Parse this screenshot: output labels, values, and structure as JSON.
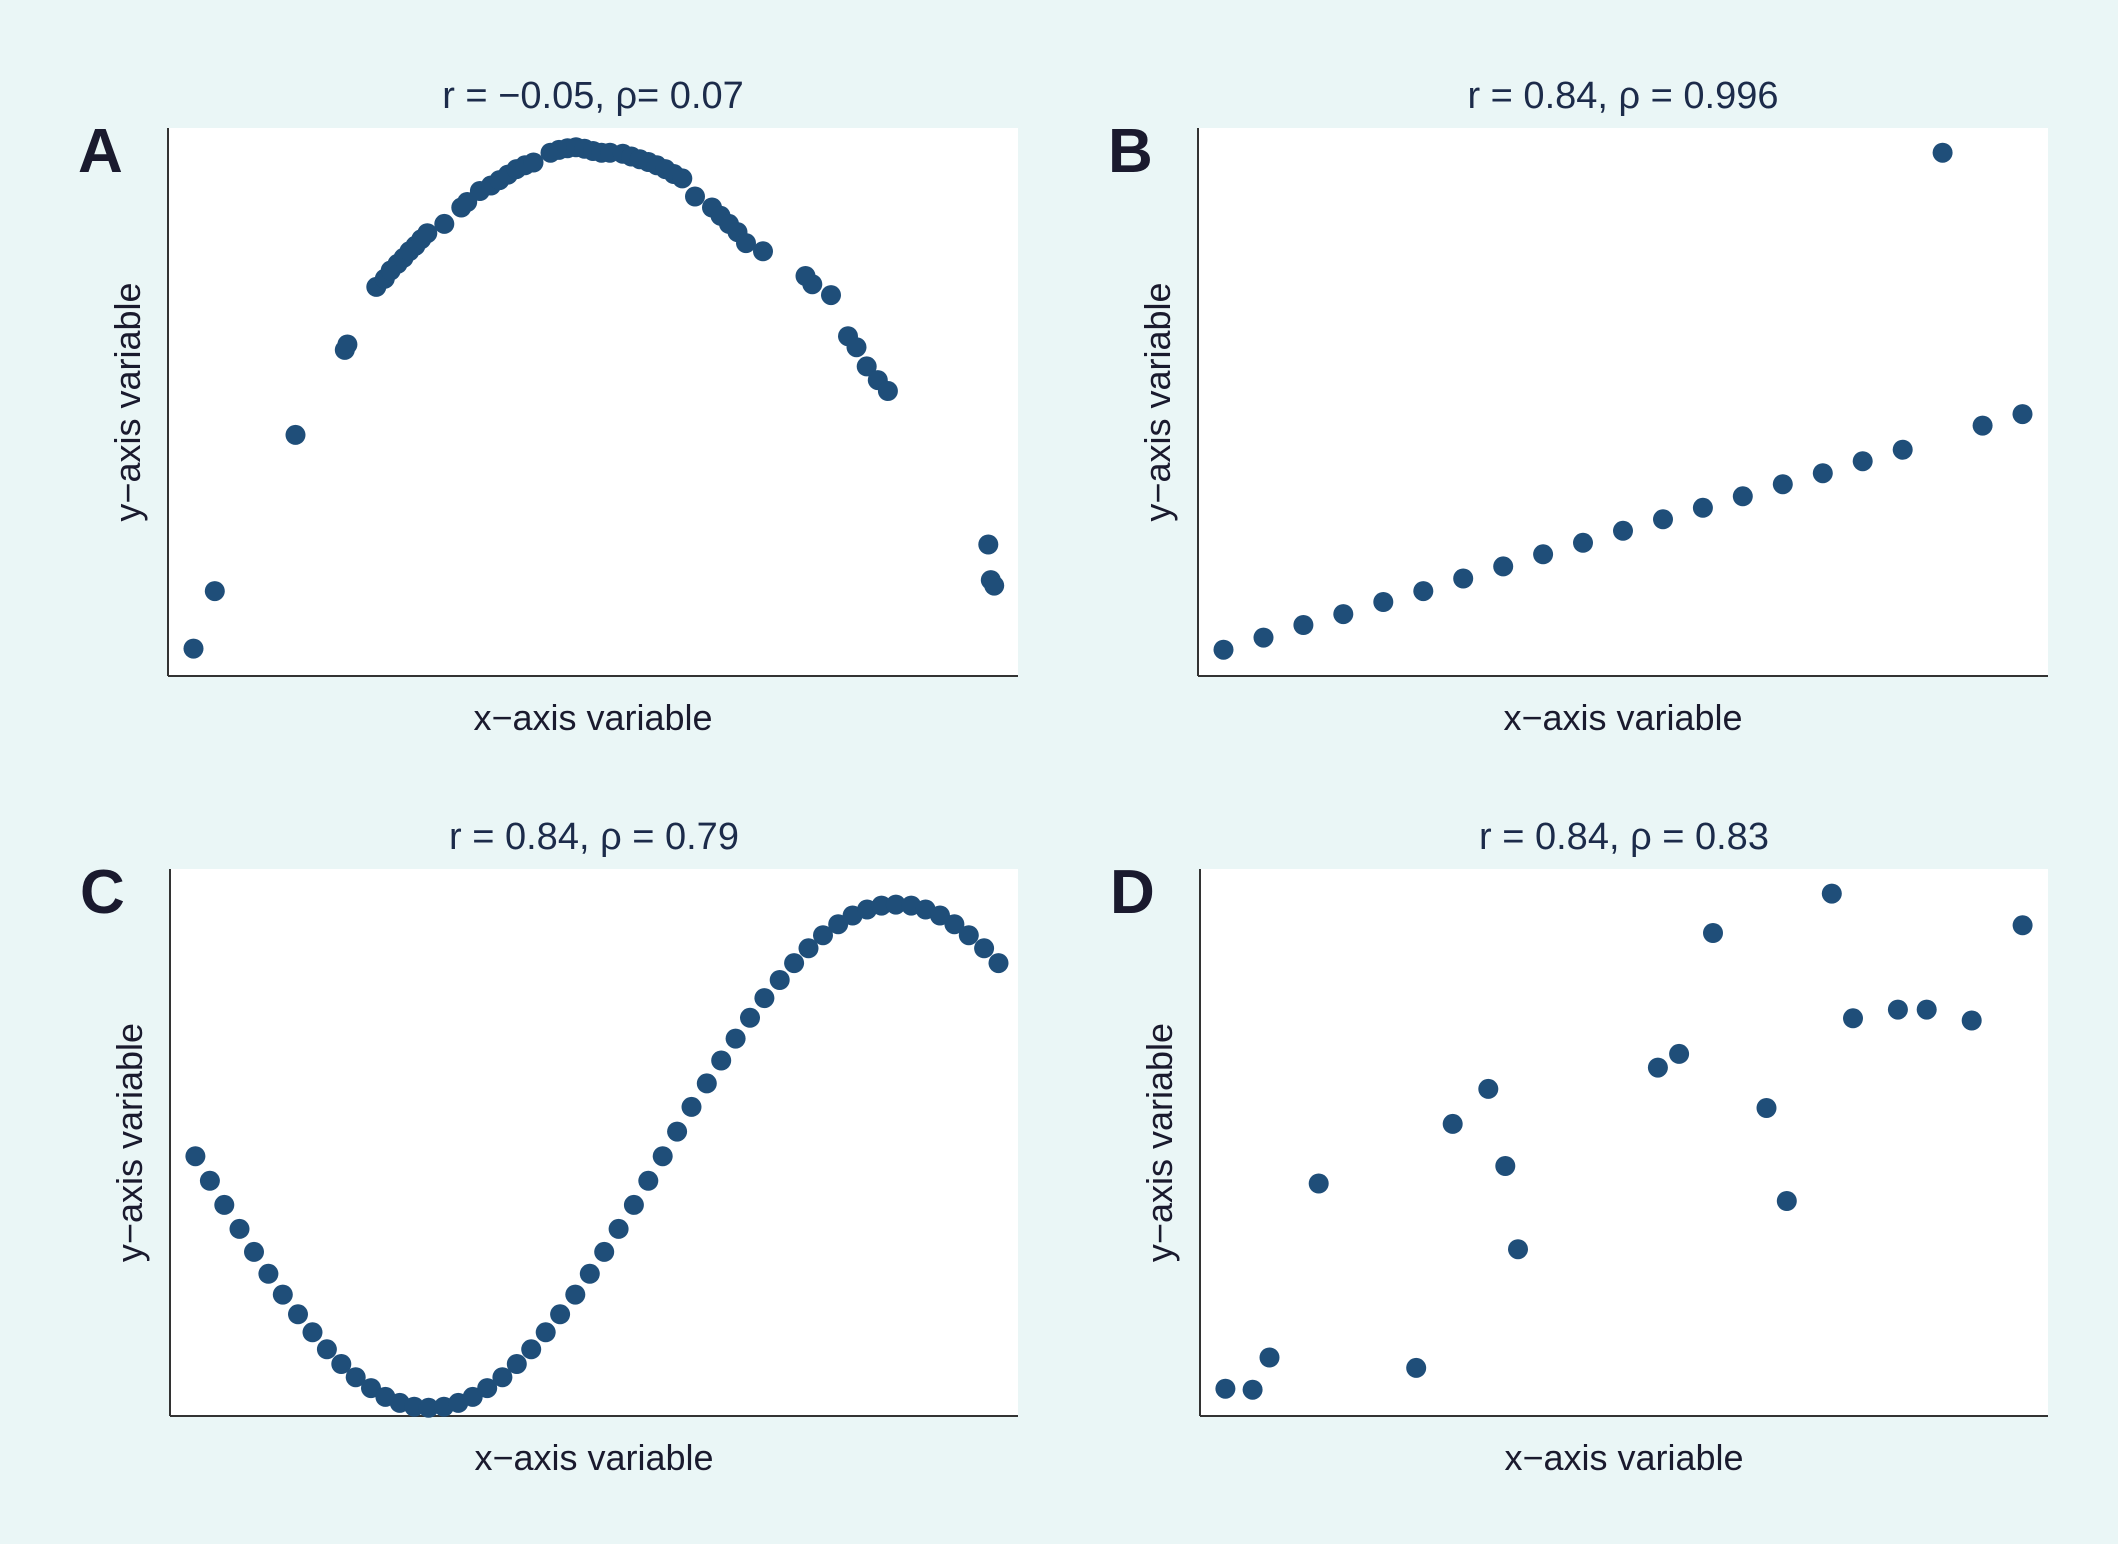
{
  "colors": {
    "background": "#eaf6f6",
    "plot_background": "#ffffff",
    "marker": "#1f4e79",
    "axis": "#333333",
    "text": "#1a1a2e",
    "title": "#1c2b4a"
  },
  "chart_data": [
    {
      "type": "scatter",
      "panel_label": "A",
      "title": "r = −0.05, ρ= 0.07",
      "xlabel": "x−axis variable",
      "ylabel": "y−axis variable",
      "xlim": [
        0,
        1
      ],
      "ylim": [
        0,
        1
      ],
      "grid": false,
      "x": [
        0.03,
        0.055,
        0.15,
        0.208,
        0.211,
        0.245,
        0.255,
        0.262,
        0.27,
        0.277,
        0.284,
        0.291,
        0.298,
        0.305,
        0.325,
        0.345,
        0.352,
        0.367,
        0.38,
        0.39,
        0.4,
        0.41,
        0.42,
        0.43,
        0.45,
        0.46,
        0.47,
        0.48,
        0.49,
        0.5,
        0.51,
        0.52,
        0.535,
        0.545,
        0.555,
        0.565,
        0.575,
        0.585,
        0.595,
        0.605,
        0.62,
        0.64,
        0.65,
        0.66,
        0.67,
        0.68,
        0.7,
        0.75,
        0.758,
        0.78,
        0.8,
        0.81,
        0.822,
        0.835,
        0.847,
        0.965,
        0.968,
        0.972
      ],
      "y": [
        0.05,
        0.155,
        0.44,
        0.595,
        0.605,
        0.71,
        0.725,
        0.74,
        0.752,
        0.763,
        0.775,
        0.785,
        0.797,
        0.808,
        0.825,
        0.855,
        0.865,
        0.885,
        0.895,
        0.905,
        0.915,
        0.925,
        0.932,
        0.937,
        0.955,
        0.96,
        0.963,
        0.965,
        0.962,
        0.958,
        0.955,
        0.955,
        0.953,
        0.948,
        0.943,
        0.938,
        0.932,
        0.925,
        0.916,
        0.908,
        0.875,
        0.855,
        0.84,
        0.825,
        0.81,
        0.79,
        0.775,
        0.73,
        0.715,
        0.695,
        0.62,
        0.6,
        0.565,
        0.54,
        0.52,
        0.24,
        0.175,
        0.165
      ]
    },
    {
      "type": "scatter",
      "panel_label": "B",
      "title": "r = 0.84, ρ = 0.996",
      "xlabel": "x−axis variable",
      "ylabel": "y−axis variable",
      "xlim": [
        0,
        1
      ],
      "ylim": [
        0,
        1
      ],
      "grid": false,
      "x": [
        0.03,
        0.077,
        0.124,
        0.171,
        0.218,
        0.265,
        0.312,
        0.359,
        0.406,
        0.453,
        0.5,
        0.547,
        0.594,
        0.641,
        0.688,
        0.735,
        0.782,
        0.829,
        0.876,
        0.923,
        0.97
      ],
      "y": [
        0.048,
        0.07,
        0.093,
        0.113,
        0.135,
        0.155,
        0.178,
        0.2,
        0.222,
        0.243,
        0.265,
        0.286,
        0.307,
        0.328,
        0.35,
        0.37,
        0.392,
        0.413,
        0.955,
        0.457,
        0.478
      ]
    },
    {
      "type": "scatter",
      "panel_label": "C",
      "title": "r = 0.84, ρ = 0.79",
      "xlabel": "x−axis variable",
      "ylabel": "y−axis variable",
      "xlim": [
        0,
        1
      ],
      "ylim": [
        0,
        1
      ],
      "grid": false,
      "x": [
        0.03,
        0.047,
        0.064,
        0.082,
        0.099,
        0.116,
        0.133,
        0.151,
        0.168,
        0.185,
        0.202,
        0.219,
        0.237,
        0.254,
        0.271,
        0.288,
        0.305,
        0.323,
        0.34,
        0.357,
        0.374,
        0.392,
        0.409,
        0.426,
        0.443,
        0.46,
        0.478,
        0.495,
        0.512,
        0.529,
        0.547,
        0.564,
        0.581,
        0.598,
        0.615,
        0.633,
        0.65,
        0.667,
        0.684,
        0.701,
        0.719,
        0.736,
        0.753,
        0.77,
        0.788,
        0.805,
        0.822,
        0.839,
        0.856,
        0.874,
        0.891,
        0.908,
        0.925,
        0.942,
        0.96,
        0.977
      ],
      "y": [
        0.475,
        0.43,
        0.386,
        0.342,
        0.3,
        0.26,
        0.222,
        0.186,
        0.153,
        0.122,
        0.095,
        0.071,
        0.051,
        0.035,
        0.024,
        0.017,
        0.015,
        0.017,
        0.024,
        0.035,
        0.051,
        0.071,
        0.095,
        0.122,
        0.153,
        0.186,
        0.222,
        0.26,
        0.3,
        0.342,
        0.386,
        0.43,
        0.475,
        0.52,
        0.565,
        0.608,
        0.65,
        0.69,
        0.728,
        0.764,
        0.797,
        0.828,
        0.855,
        0.879,
        0.899,
        0.915,
        0.926,
        0.933,
        0.935,
        0.933,
        0.926,
        0.915,
        0.899,
        0.879,
        0.855,
        0.828
      ]
    },
    {
      "type": "scatter",
      "panel_label": "D",
      "title": "r = 0.84, ρ = 0.83",
      "xlabel": "x−axis variable",
      "ylabel": "y−axis variable",
      "xlim": [
        0,
        1
      ],
      "ylim": [
        0,
        1
      ],
      "grid": false,
      "x": [
        0.03,
        0.062,
        0.082,
        0.14,
        0.255,
        0.298,
        0.34,
        0.36,
        0.375,
        0.54,
        0.565,
        0.605,
        0.668,
        0.692,
        0.745,
        0.77,
        0.823,
        0.857,
        0.91,
        0.97
      ],
      "y": [
        0.05,
        0.048,
        0.107,
        0.425,
        0.088,
        0.534,
        0.598,
        0.457,
        0.305,
        0.637,
        0.662,
        0.883,
        0.563,
        0.393,
        0.955,
        0.727,
        0.743,
        0.743,
        0.723,
        0.897
      ]
    }
  ]
}
